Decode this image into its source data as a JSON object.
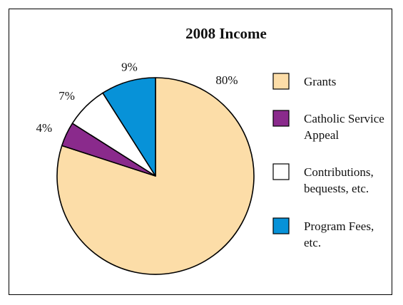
{
  "chart_data": {
    "type": "pie",
    "title": "2008 Income",
    "series": [
      {
        "name": "Grants",
        "value": 80,
        "label": "80%",
        "color": "#FCDDA8"
      },
      {
        "name": "Catholic Service Appeal",
        "name_lines": [
          "Catholic Service",
          "Appeal"
        ],
        "value": 4,
        "label": "4%",
        "color": "#8A2A8C"
      },
      {
        "name": "Contributions, bequests, etc.",
        "name_lines": [
          "Contributions,",
          "bequests, etc."
        ],
        "value": 7,
        "label": "7%",
        "color": "#FFFFFF"
      },
      {
        "name": "Program Fees, etc.",
        "name_lines": [
          "Program Fees,",
          "etc."
        ],
        "value": 9,
        "label": "9%",
        "color": "#0792D8"
      }
    ],
    "legend_position": "right",
    "start": "top",
    "direction": "clockwise"
  }
}
